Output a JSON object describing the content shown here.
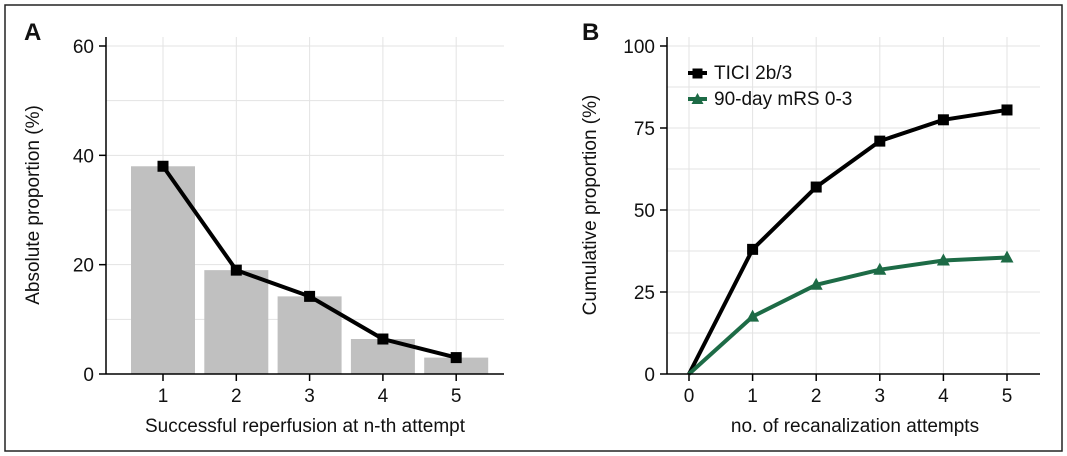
{
  "panels": {
    "A": {
      "letter": "A"
    },
    "B": {
      "letter": "B"
    }
  },
  "chart_data": [
    {
      "panel": "A",
      "type": "bar",
      "categories": [
        "1",
        "2",
        "3",
        "4",
        "5"
      ],
      "values": [
        38,
        19,
        14.2,
        6.4,
        3
      ],
      "line": {
        "values": [
          38,
          19,
          14.2,
          6.4,
          3
        ],
        "marker": "square",
        "color": "#000000"
      },
      "bar_color": "#c0c0c0",
      "xlabel": "Successful reperfusion at n-th attempt",
      "ylabel": "Absolute proportion (%)",
      "ylim": [
        0,
        60
      ],
      "yticks": [
        "0",
        "20",
        "40",
        "60"
      ],
      "grid": true
    },
    {
      "panel": "B",
      "type": "line",
      "x": [
        0,
        1,
        2,
        3,
        4,
        5
      ],
      "xticks": [
        "0",
        "1",
        "2",
        "3",
        "4",
        "5"
      ],
      "series": [
        {
          "name": "TICI 2b/3",
          "values": [
            0,
            38,
            57,
            71,
            77.5,
            80.5
          ],
          "color": "#000000",
          "marker": "square"
        },
        {
          "name": "90-day mRS 0-3",
          "values": [
            0,
            17.5,
            27.2,
            31.8,
            34.6,
            35.5
          ],
          "color": "#1d6b46",
          "marker": "triangle"
        }
      ],
      "xlabel": "no. of recanalization attempts",
      "ylabel": "Cumulative proportion (%)",
      "ylim": [
        0,
        100
      ],
      "yticks": [
        "0",
        "25",
        "50",
        "75",
        "100"
      ],
      "legend_position": "top-left",
      "grid": true
    }
  ]
}
